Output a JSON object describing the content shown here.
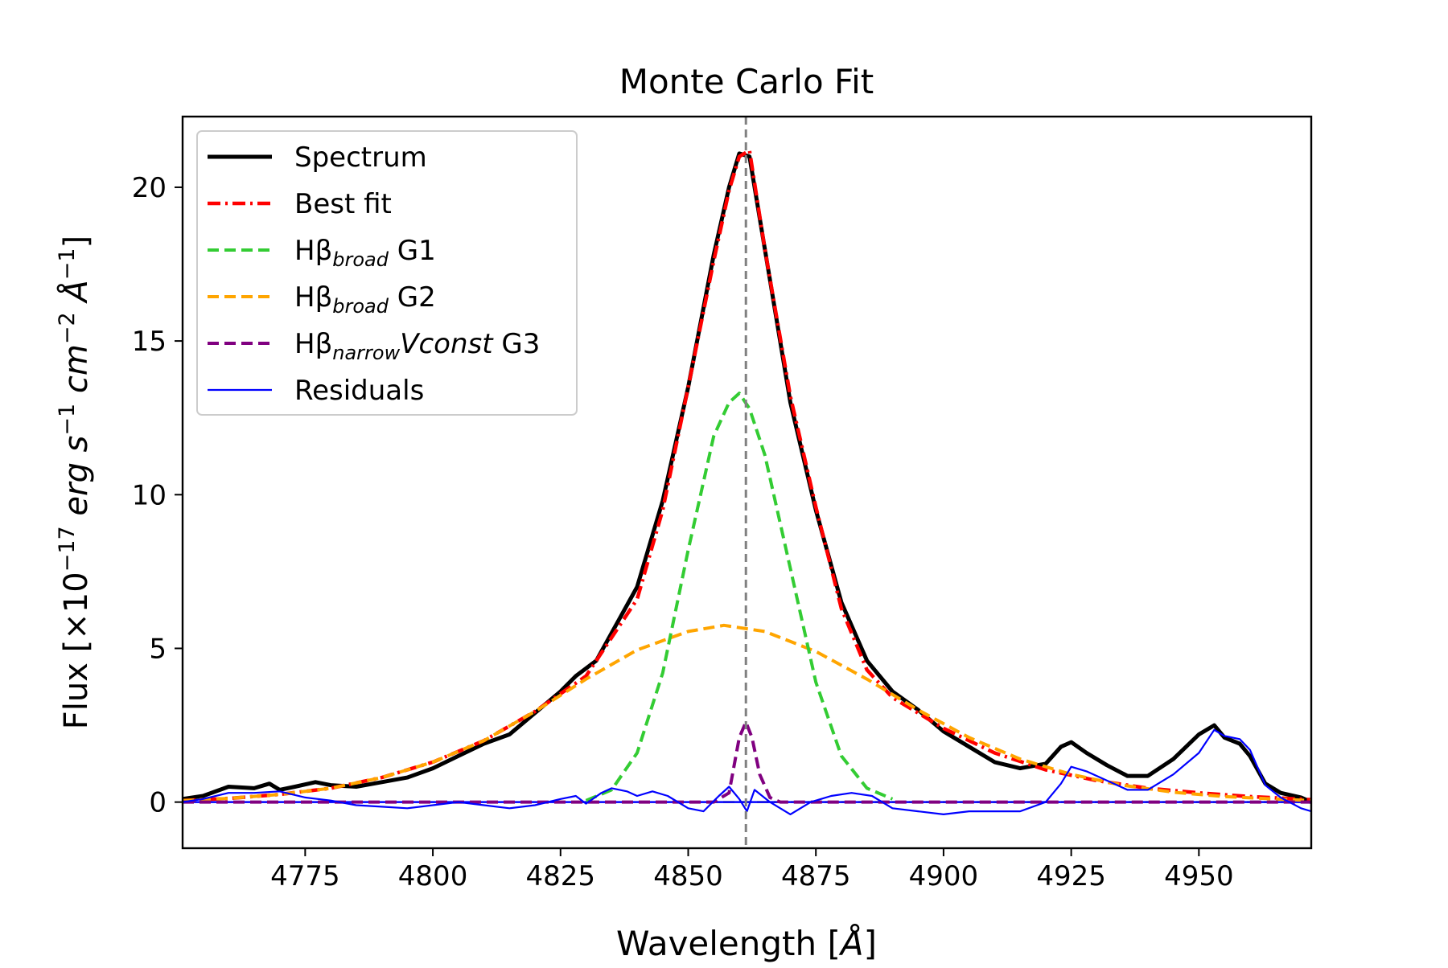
{
  "chart_data": {
    "type": "line",
    "title": "Monte Carlo Fit",
    "xlabel": {
      "prefix": "Wavelength [",
      "symbol": "Å",
      "suffix": "]"
    },
    "ylabel": {
      "prefix": "Flux [×10",
      "exp1": "−17",
      "u1": " erg s",
      "exp2": "−1",
      "u2": " cm",
      "exp3": "−2",
      "u3": " Å",
      "exp4": "−1",
      "suffix": "]"
    },
    "xlim": [
      4751,
      4972
    ],
    "ylim": [
      -1.5,
      22.3
    ],
    "xticks": [
      4775,
      4800,
      4825,
      4850,
      4875,
      4900,
      4925,
      4950
    ],
    "yticks": [
      0,
      5,
      10,
      15,
      20
    ],
    "reference_line_x": 4861.3,
    "colors": {
      "spectrum": "#000000",
      "best_fit": "#ff0000",
      "g1": "#33cc33",
      "g2": "#ffa500",
      "g3": "#800080",
      "residuals": "#0000ff",
      "reference": "#808080"
    },
    "legend": {
      "position": "upper-left",
      "entries": [
        {
          "key": "spectrum",
          "label": "Spectrum"
        },
        {
          "key": "best_fit",
          "label": "Best fit"
        },
        {
          "key": "g1",
          "base": "Hβ",
          "sub": "broad",
          "tail": " G1"
        },
        {
          "key": "g2",
          "base": "Hβ",
          "sub": "broad",
          "tail": " G2"
        },
        {
          "key": "g3",
          "base": "Hβ",
          "sub": "narrow",
          "ital": "Vconst",
          "tail": " G3"
        },
        {
          "key": "residuals",
          "label": "Residuals"
        }
      ]
    },
    "series": [
      {
        "name": "Spectrum",
        "key": "spectrum",
        "x": [
          4751,
          4755,
          4760,
          4765,
          4768,
          4770,
          4773,
          4777,
          4780,
          4785,
          4790,
          4795,
          4800,
          4805,
          4810,
          4815,
          4820,
          4825,
          4828,
          4832,
          4836,
          4840,
          4845,
          4850,
          4855,
          4858,
          4860,
          4862,
          4865,
          4870,
          4875,
          4880,
          4885,
          4890,
          4895,
          4900,
          4905,
          4910,
          4915,
          4920,
          4923,
          4925,
          4928,
          4932,
          4936,
          4940,
          4945,
          4950,
          4953,
          4955,
          4958,
          4960,
          4963,
          4966,
          4970,
          4972
        ],
        "y": [
          0.1,
          0.2,
          0.5,
          0.45,
          0.6,
          0.4,
          0.5,
          0.65,
          0.55,
          0.5,
          0.65,
          0.8,
          1.1,
          1.5,
          1.9,
          2.2,
          2.9,
          3.6,
          4.1,
          4.6,
          5.8,
          7.0,
          9.8,
          13.5,
          17.8,
          20.0,
          21.1,
          21.0,
          18.0,
          13.0,
          9.5,
          6.5,
          4.6,
          3.6,
          3.0,
          2.3,
          1.8,
          1.3,
          1.1,
          1.25,
          1.8,
          1.95,
          1.6,
          1.2,
          0.85,
          0.85,
          1.4,
          2.2,
          2.5,
          2.1,
          1.9,
          1.5,
          0.6,
          0.3,
          0.15,
          0.0
        ]
      },
      {
        "name": "Best fit",
        "key": "best_fit",
        "x": [
          4751,
          4760,
          4770,
          4780,
          4790,
          4800,
          4810,
          4820,
          4830,
          4840,
          4845,
          4850,
          4855,
          4858,
          4860,
          4862,
          4865,
          4870,
          4875,
          4880,
          4885,
          4890,
          4900,
          4910,
          4920,
          4930,
          4940,
          4950,
          4960,
          4972
        ],
        "y": [
          0.05,
          0.12,
          0.25,
          0.45,
          0.8,
          1.3,
          2.0,
          2.95,
          4.1,
          6.6,
          9.5,
          13.5,
          17.6,
          19.9,
          21.0,
          21.2,
          18.0,
          13.2,
          9.6,
          6.3,
          4.3,
          3.4,
          2.4,
          1.6,
          1.05,
          0.7,
          0.45,
          0.3,
          0.18,
          0.08
        ]
      },
      {
        "name": "Hβ broad G1",
        "key": "g1",
        "x": [
          4830,
          4835,
          4840,
          4845,
          4850,
          4855,
          4858,
          4860,
          4862,
          4865,
          4870,
          4875,
          4880,
          4885,
          4890
        ],
        "y": [
          0.05,
          0.4,
          1.6,
          4.2,
          8.2,
          11.9,
          13.0,
          13.3,
          12.8,
          11.3,
          7.6,
          3.9,
          1.5,
          0.45,
          0.1
        ]
      },
      {
        "name": "Hβ broad G2",
        "key": "g2",
        "x": [
          4751,
          4760,
          4770,
          4780,
          4790,
          4800,
          4810,
          4820,
          4830,
          4840,
          4850,
          4857,
          4865,
          4875,
          4885,
          4895,
          4905,
          4915,
          4925,
          4935,
          4945,
          4955,
          4965,
          4972
        ],
        "y": [
          0.05,
          0.12,
          0.25,
          0.45,
          0.8,
          1.3,
          2.0,
          2.95,
          4.0,
          4.95,
          5.55,
          5.75,
          5.55,
          4.9,
          4.0,
          3.0,
          2.1,
          1.4,
          0.9,
          0.55,
          0.32,
          0.18,
          0.1,
          0.05
        ]
      },
      {
        "name": "Hβ narrow Vconst G3",
        "key": "g3",
        "x": [
          4751,
          4855,
          4858,
          4860,
          4861.3,
          4862.5,
          4864,
          4866,
          4868,
          4972
        ],
        "y": [
          0.0,
          0.0,
          0.3,
          2.1,
          2.6,
          2.1,
          0.9,
          0.15,
          0.0,
          0.0
        ]
      },
      {
        "name": "Residuals",
        "key": "residuals",
        "x": [
          4751,
          4755,
          4760,
          4765,
          4770,
          4775,
          4780,
          4785,
          4790,
          4795,
          4800,
          4805,
          4810,
          4815,
          4820,
          4825,
          4828,
          4830,
          4833,
          4835,
          4838,
          4840,
          4843,
          4846,
          4850,
          4853,
          4856,
          4858,
          4860,
          4861.5,
          4863,
          4866,
          4870,
          4874,
          4878,
          4882,
          4886,
          4890,
          4895,
          4900,
          4905,
          4910,
          4915,
          4920,
          4923,
          4925,
          4928,
          4932,
          4936,
          4940,
          4945,
          4950,
          4953,
          4955,
          4958,
          4960,
          4963,
          4966,
          4970,
          4972
        ],
        "y": [
          0.0,
          0.1,
          0.3,
          0.3,
          0.35,
          0.15,
          0.05,
          -0.1,
          -0.15,
          -0.2,
          -0.1,
          0.0,
          -0.1,
          -0.2,
          -0.1,
          0.1,
          0.2,
          -0.05,
          0.3,
          0.45,
          0.35,
          0.2,
          0.35,
          0.2,
          -0.2,
          -0.3,
          0.2,
          0.5,
          0.1,
          -0.3,
          0.4,
          0.0,
          -0.4,
          0.0,
          0.2,
          0.3,
          0.2,
          -0.2,
          -0.3,
          -0.4,
          -0.3,
          -0.3,
          -0.3,
          0.0,
          0.6,
          1.15,
          1.0,
          0.7,
          0.4,
          0.4,
          0.9,
          1.6,
          2.35,
          2.15,
          2.05,
          1.7,
          0.55,
          0.15,
          -0.2,
          -0.3
        ]
      }
    ]
  }
}
